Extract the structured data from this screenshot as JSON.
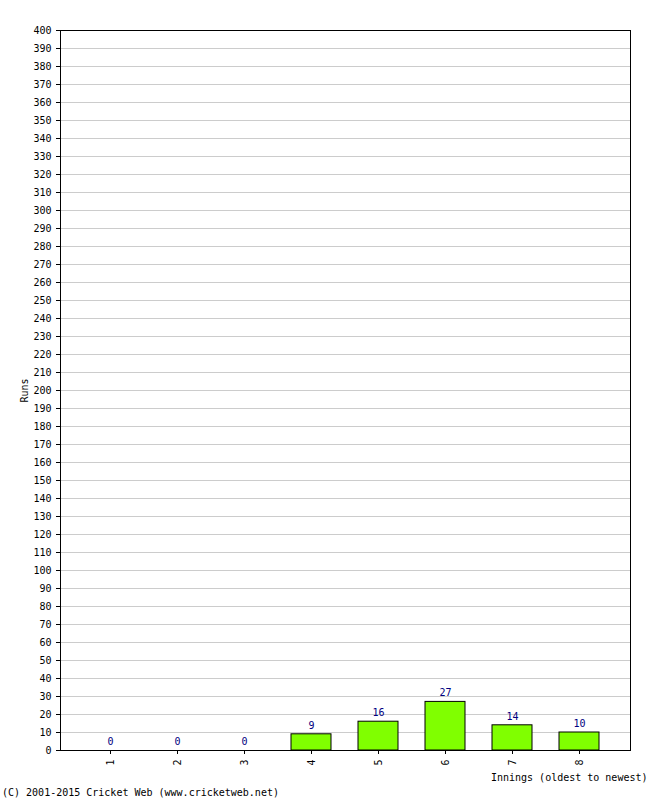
{
  "chart_data": {
    "type": "bar",
    "categories": [
      "1",
      "2",
      "3",
      "4",
      "5",
      "6",
      "7",
      "8"
    ],
    "values": [
      0,
      0,
      0,
      9,
      16,
      27,
      14,
      10
    ],
    "color": "#80ff00",
    "x_label": "Innings (oldest to newest)",
    "y_label": "Runs",
    "caption": "(C) 2001-2015 Cricket Web (www.cricketweb.net)",
    "ylim": [
      0,
      400
    ],
    "yticks": [
      0,
      10,
      20,
      30,
      40,
      50,
      60,
      70,
      80,
      90,
      100,
      110,
      120,
      130,
      140,
      150,
      160,
      170,
      180,
      190,
      200,
      210,
      220,
      230,
      240,
      250,
      260,
      270,
      280,
      290,
      300,
      310,
      320,
      330,
      340,
      350,
      360,
      370,
      380,
      390,
      400
    ],
    "grid": true,
    "data_labels": true
  }
}
